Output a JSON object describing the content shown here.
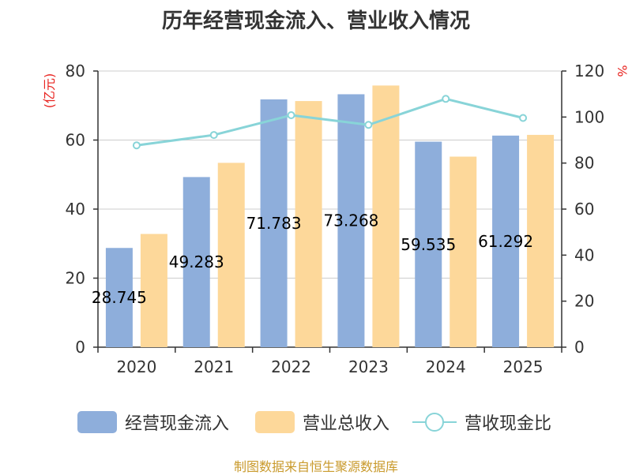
{
  "chart_data": {
    "type": "bar",
    "title": "历年经营现金流入、营业收入情况",
    "categories": [
      "2020",
      "2021",
      "2022",
      "2023",
      "2024",
      "2025"
    ],
    "series": [
      {
        "name": "经营现金流入",
        "type": "bar",
        "axis": "left",
        "color": "#8eaedb",
        "values": [
          28.745,
          49.283,
          71.783,
          73.268,
          59.535,
          61.292
        ],
        "labels": [
          "28.745",
          "49.283",
          "71.783",
          "73.268",
          "59.535",
          "61.292"
        ]
      },
      {
        "name": "营业总收入",
        "type": "bar",
        "axis": "left",
        "color": "#fdd89a",
        "values": [
          32.8,
          53.4,
          71.3,
          75.8,
          55.2,
          61.5
        ]
      },
      {
        "name": "营收现金比",
        "type": "line",
        "axis": "right",
        "color": "#88d4d8",
        "values": [
          87.7,
          92.2,
          100.8,
          96.6,
          107.9,
          99.6
        ]
      }
    ],
    "y_left": {
      "unit": "(亿元)",
      "min": 0,
      "max": 80,
      "ticks": [
        0,
        20,
        40,
        60,
        80
      ]
    },
    "y_right": {
      "unit": "%",
      "min": 0,
      "max": 120,
      "ticks": [
        0,
        20,
        40,
        60,
        80,
        100,
        120
      ]
    },
    "grid": true,
    "legend_position": "bottom"
  },
  "source": "制图数据来自恒生聚源数据库"
}
